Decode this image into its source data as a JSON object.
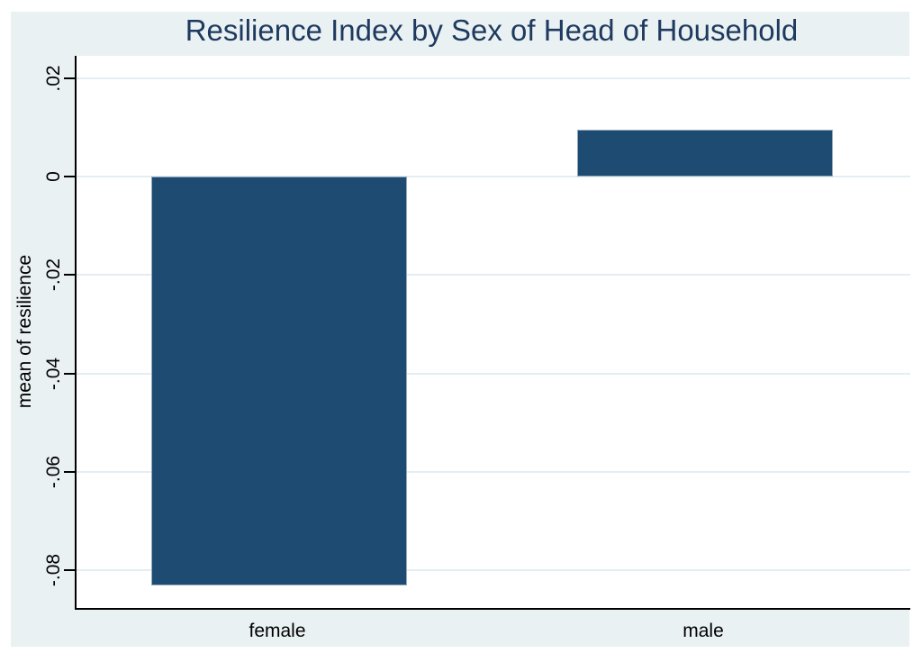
{
  "chart_data": {
    "type": "bar",
    "title": "Resilience Index by Sex of Head of Household",
    "ylabel": "mean of resilience",
    "xlabel": "",
    "categories": [
      "female",
      "male"
    ],
    "values": [
      -0.083,
      0.0095
    ],
    "yticks": [
      0.02,
      0,
      -0.02,
      -0.04,
      -0.06,
      -0.08
    ],
    "ytick_labels": [
      ".02",
      "0",
      "-.02",
      "-.04",
      "-.06",
      "-.08"
    ],
    "ylim": [
      -0.0876,
      0.0245
    ],
    "grid": true,
    "legend": "none",
    "bar_color": "#1d4b72",
    "bar_outline_color": "#93a9bd",
    "gridline_color": "#e4eef2",
    "canvas_background": "#eaf1f3",
    "plot_background": "#ffffff",
    "title_color": "#1e3a5f",
    "axis_color": "#000000"
  }
}
